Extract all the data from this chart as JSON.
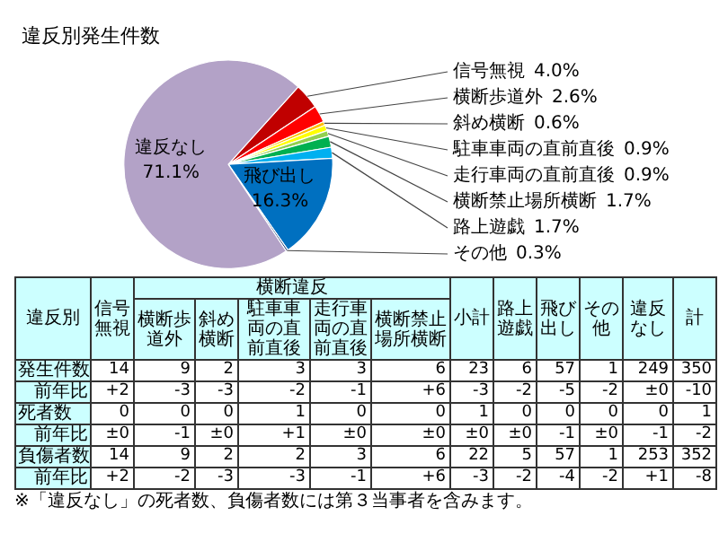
{
  "chart_data": {
    "type": "pie",
    "title": "違反別発生件数",
    "categories": [
      "信号無視",
      "横断歩道外",
      "斜め横断",
      "駐車車両の直前直後",
      "走行車両の直前直後",
      "横断禁止場所横断",
      "路上遊戯",
      "飛び出し",
      "その他",
      "違反なし"
    ],
    "values": [
      4.0,
      2.6,
      0.6,
      0.9,
      0.9,
      1.7,
      1.7,
      16.3,
      0.3,
      71.1
    ],
    "value_labels": [
      "4.0%",
      "2.6%",
      "0.6%",
      "0.9%",
      "0.9%",
      "1.7%",
      "1.7%",
      "16.3%",
      "0.3%",
      "71.1%"
    ],
    "colors": [
      "#c00000",
      "#ff0000",
      "#ffc000",
      "#ffff00",
      "#92d050",
      "#00b050",
      "#00b0f0",
      "#0070c0",
      "#002060",
      "#b3a2c7"
    ],
    "annotations": [
      "横断違反",
      "違反別",
      "信号無視",
      "横断歩道外",
      "斜め横断",
      "駐車車両の直前直後",
      "走行車両の直前直後",
      "横断禁止場所横断",
      "小計",
      "路上遊戯",
      "飛び出し",
      "その他",
      "違反なし",
      "計",
      "発生件数 14 9 2 3 3 6 23 6 57 1 249 350",
      "前年比 +2 -3 -3 -2 -1 +6 -3 -2 -5 -2 ±0 -10",
      "死者数 0 0 0 1 0 0 1 0 0 0 0 1",
      "前年比 ±0 -1 ±0 +1 ±0 ±0 ±0 ±0 -1 ±0 -1 -2",
      "負傷者数 14 9 2 2 3 6 22 5 57 1 253 352",
      "前年比 +2 -2 -3 -3 -1 +6 -3 -2 -4 -2 +1 -8",
      "※「違反なし」の死者数、負傷者数には第３当事者を含みます。"
    ]
  }
}
